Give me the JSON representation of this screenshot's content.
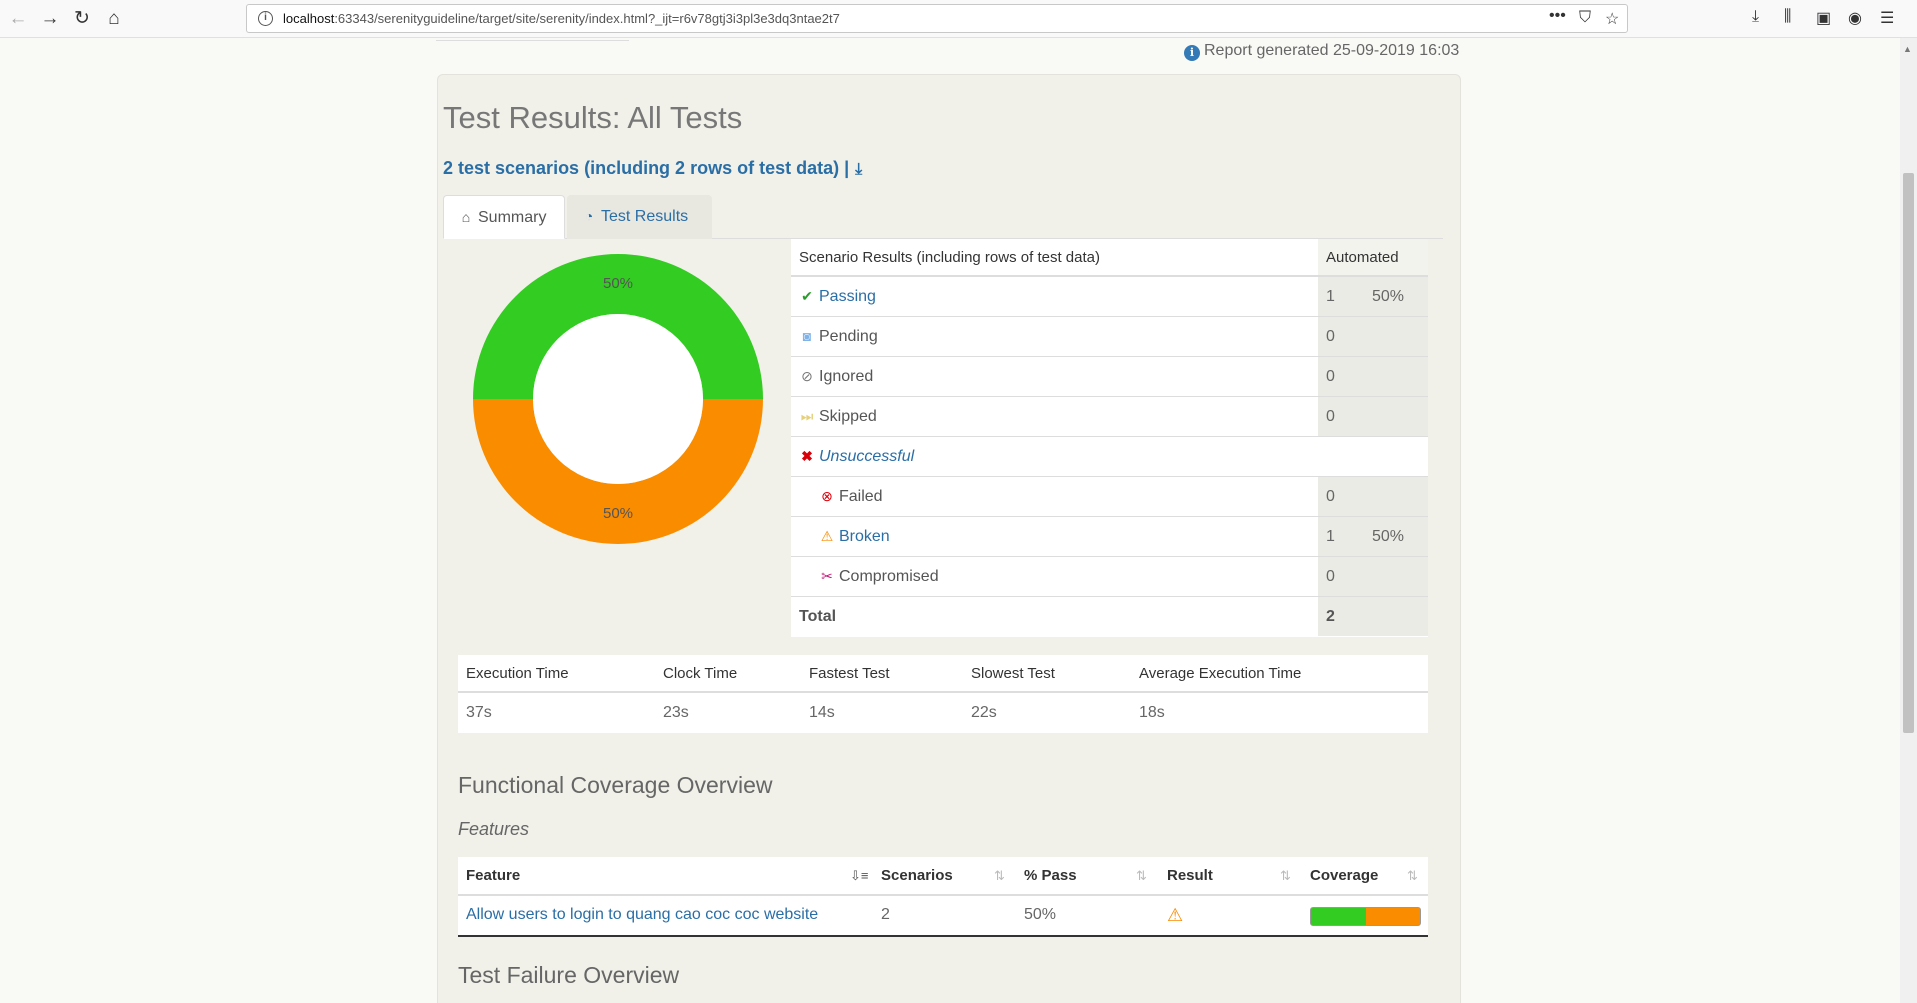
{
  "browser": {
    "url_host": "localhost",
    "url_rest": ":63343/serenityguideline/target/site/serenity/index.html?_ijt=r6v78gtj3i3pl3e3dq3ntae2t7"
  },
  "report": {
    "generated_text": "Report generated 25-09-2019 16:03",
    "title": "Test Results: All Tests",
    "subtitle": "2 test scenarios (including 2 rows of test data) |"
  },
  "tabs": [
    {
      "label": "Summary",
      "icon": "home-icon"
    },
    {
      "label": "Test Results",
      "icon": "dashboard-icon"
    }
  ],
  "chart_data": {
    "type": "pie",
    "categories": [
      "Passing",
      "Broken"
    ],
    "values": [
      50,
      50
    ],
    "labels": [
      "50%",
      "50%"
    ],
    "colors": [
      "#33cc22",
      "#fa8c00"
    ],
    "style": "donut"
  },
  "scenario_table": {
    "header": {
      "label": "Scenario Results (including rows of test data)",
      "col": "Automated"
    },
    "rows": [
      {
        "label": "Passing",
        "count": "1",
        "pct": "50%"
      },
      {
        "label": "Pending",
        "count": "0",
        "pct": ""
      },
      {
        "label": "Ignored",
        "count": "0",
        "pct": ""
      },
      {
        "label": "Skipped",
        "count": "0",
        "pct": ""
      },
      {
        "label": "Unsuccessful",
        "count": "",
        "pct": ""
      },
      {
        "label": "Failed",
        "count": "0",
        "pct": ""
      },
      {
        "label": "Broken",
        "count": "1",
        "pct": "50%"
      },
      {
        "label": "Compromised",
        "count": "0",
        "pct": ""
      }
    ],
    "total": {
      "label": "Total",
      "count": "2"
    }
  },
  "execution": {
    "headers": [
      "Execution Time",
      "Clock Time",
      "Fastest Test",
      "Slowest Test",
      "Average Execution Time"
    ],
    "values": [
      "37s",
      "23s",
      "14s",
      "22s",
      "18s"
    ]
  },
  "coverage": {
    "title": "Functional Coverage Overview",
    "features_label": "Features",
    "headers": [
      "Feature",
      "Scenarios",
      "% Pass",
      "Result",
      "Coverage"
    ],
    "rows": [
      {
        "feature": "Allow users to login to quang cao coc coc website",
        "scenarios": "2",
        "pass": "50%",
        "result_icon": "warning-icon",
        "coverage_pass": 0.5
      }
    ]
  },
  "failure_overview_title": "Test Failure Overview"
}
